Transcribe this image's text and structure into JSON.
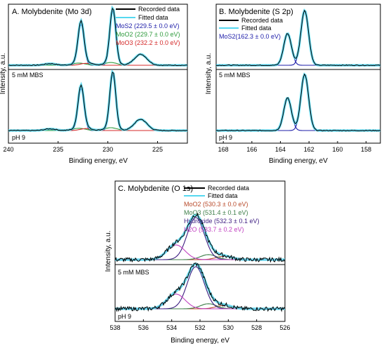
{
  "panels": [
    {
      "title": "A. Molybdenite (Mo 3d)",
      "xlabel": "Binding energy, eV",
      "ylabel": "Intensity, a.u.",
      "legend_title_lines": [
        "Recorded data",
        "Fitted data"
      ],
      "component_labels": [
        "MoS2 (229.5 ± 0.0 eV)",
        "MoO2 (229.7 ± 0.0 eV)",
        "MoO3 (232.2 ± 0.0 eV)"
      ],
      "trace_labels": [
        "5 mM MBS",
        "pH 9"
      ]
    },
    {
      "title": "B. Molybdenite (S 2p)",
      "xlabel": "Binding energy, eV",
      "ylabel": "Intensity, a.u.",
      "legend_title_lines": [
        "Recorded data",
        "Fitted data"
      ],
      "component_labels": [
        "MoS2(162.3 ± 0.0 eV)"
      ],
      "trace_labels": [
        "5 mM MBS",
        "pH 9"
      ]
    },
    {
      "title": "C. Molybdenite (O 1s)",
      "xlabel": "Binding energy, eV",
      "ylabel": "Intensity, a.u.",
      "legend_title_lines": [
        "Recorded data",
        "Fitted data"
      ],
      "component_labels": [
        "MoO2 (530.3 ± 0.0 eV)",
        "MoO3 (531.4 ± 0.1 eV)",
        "Hydroxide (532.3 ± 0.1 eV)",
        "H2O (533.7 ± 0.2 eV)"
      ],
      "trace_labels": [
        "5 mM MBS",
        "pH 9"
      ]
    }
  ],
  "colors": {
    "recorded": "#000000",
    "fitted": "#55d8f0",
    "mos2": "#1c1ca8",
    "moo2": "#2e9a3c",
    "moo3": "#d42a2a",
    "hydroxide": "#3c1c80",
    "h2o": "#c040c0",
    "o_moo2": "#b84a2a",
    "o_moo3": "#3f7f4a"
  },
  "chart_data": [
    {
      "type": "line",
      "title": "A. Molybdenite (Mo 3d)",
      "xlabel": "Binding energy, eV",
      "ylabel": "Intensity, a.u.",
      "xlim": [
        240,
        222
      ],
      "xticks": [
        240,
        235,
        230,
        225
      ],
      "y_ticks_shown": false,
      "traces": [
        {
          "label": "5 mM MBS",
          "baseline": 0.03,
          "scale": 0.48
        },
        {
          "label": "pH 9",
          "baseline": -0.62,
          "scale": 0.5
        }
      ],
      "components": [
        {
          "name": "MoS2",
          "color": "mos2",
          "peaks": [
            {
              "x": 229.5,
              "h": 1.0,
              "w": 0.42
            },
            {
              "x": 232.7,
              "h": 0.75,
              "w": 0.42
            }
          ]
        },
        {
          "name": "MoO2",
          "color": "moo2",
          "peaks": [
            {
              "x": 229.7,
              "h": 0.05,
              "w": 0.9
            },
            {
              "x": 232.9,
              "h": 0.04,
              "w": 0.9
            }
          ]
        },
        {
          "name": "MoO3",
          "color": "moo3",
          "peaks": [
            {
              "x": 232.2,
              "h": 0.035,
              "w": 0.8
            },
            {
              "x": 235.8,
              "h": 0.03,
              "w": 0.8
            }
          ]
        },
        {
          "name": "S 2s",
          "color": "recorded",
          "peaks": [
            {
              "x": 226.7,
              "h": 0.2,
              "w": 0.9
            }
          ]
        }
      ]
    },
    {
      "type": "line",
      "title": "B. Molybdenite (S 2p)",
      "xlabel": "Binding energy, eV",
      "ylabel": "Intensity, a.u.",
      "xlim": [
        168.5,
        157
      ],
      "xticks": [
        168,
        166,
        164,
        162,
        160,
        158
      ],
      "y_ticks_shown": false,
      "traces": [
        {
          "label": "5 mM MBS",
          "baseline": 0.02,
          "scale": 0.58
        },
        {
          "label": "pH 9",
          "baseline": -0.7,
          "scale": 0.58
        }
      ],
      "components": [
        {
          "name": "MoS2 2p3/2",
          "color": "mos2",
          "peaks": [
            {
              "x": 162.3,
              "h": 1.0,
              "w": 0.38
            }
          ]
        },
        {
          "name": "MoS2 2p1/2",
          "color": "mos2",
          "peaks": [
            {
              "x": 163.5,
              "h": 0.58,
              "w": 0.38
            }
          ]
        }
      ]
    },
    {
      "type": "line",
      "title": "C. Molybdenite (O 1s)",
      "xlabel": "Binding energy, eV",
      "ylabel": "Intensity, a.u.",
      "xlim": [
        538,
        526
      ],
      "xticks": [
        538,
        536,
        534,
        532,
        530,
        528,
        526
      ],
      "y_ticks_shown": false,
      "traces": [
        {
          "label": "5 mM MBS",
          "baseline": 0.02,
          "scale": 0.42
        },
        {
          "label": "pH 9",
          "baseline": -0.6,
          "scale": 0.42
        }
      ],
      "components": [
        {
          "name": "MoO2",
          "color": "o_moo2",
          "peaks": [
            {
              "x": 530.3,
              "h": 0.08,
              "w": 0.8
            }
          ]
        },
        {
          "name": "MoO3",
          "color": "o_moo3",
          "peaks": [
            {
              "x": 531.4,
              "h": 0.12,
              "w": 0.8
            }
          ]
        },
        {
          "name": "Hydroxide",
          "color": "hydroxide",
          "peaks": [
            {
              "x": 532.3,
              "h": 1.0,
              "w": 0.85
            }
          ]
        },
        {
          "name": "H2O",
          "color": "h2o",
          "peaks": [
            {
              "x": 533.7,
              "h": 0.35,
              "w": 0.9
            }
          ]
        }
      ]
    }
  ]
}
